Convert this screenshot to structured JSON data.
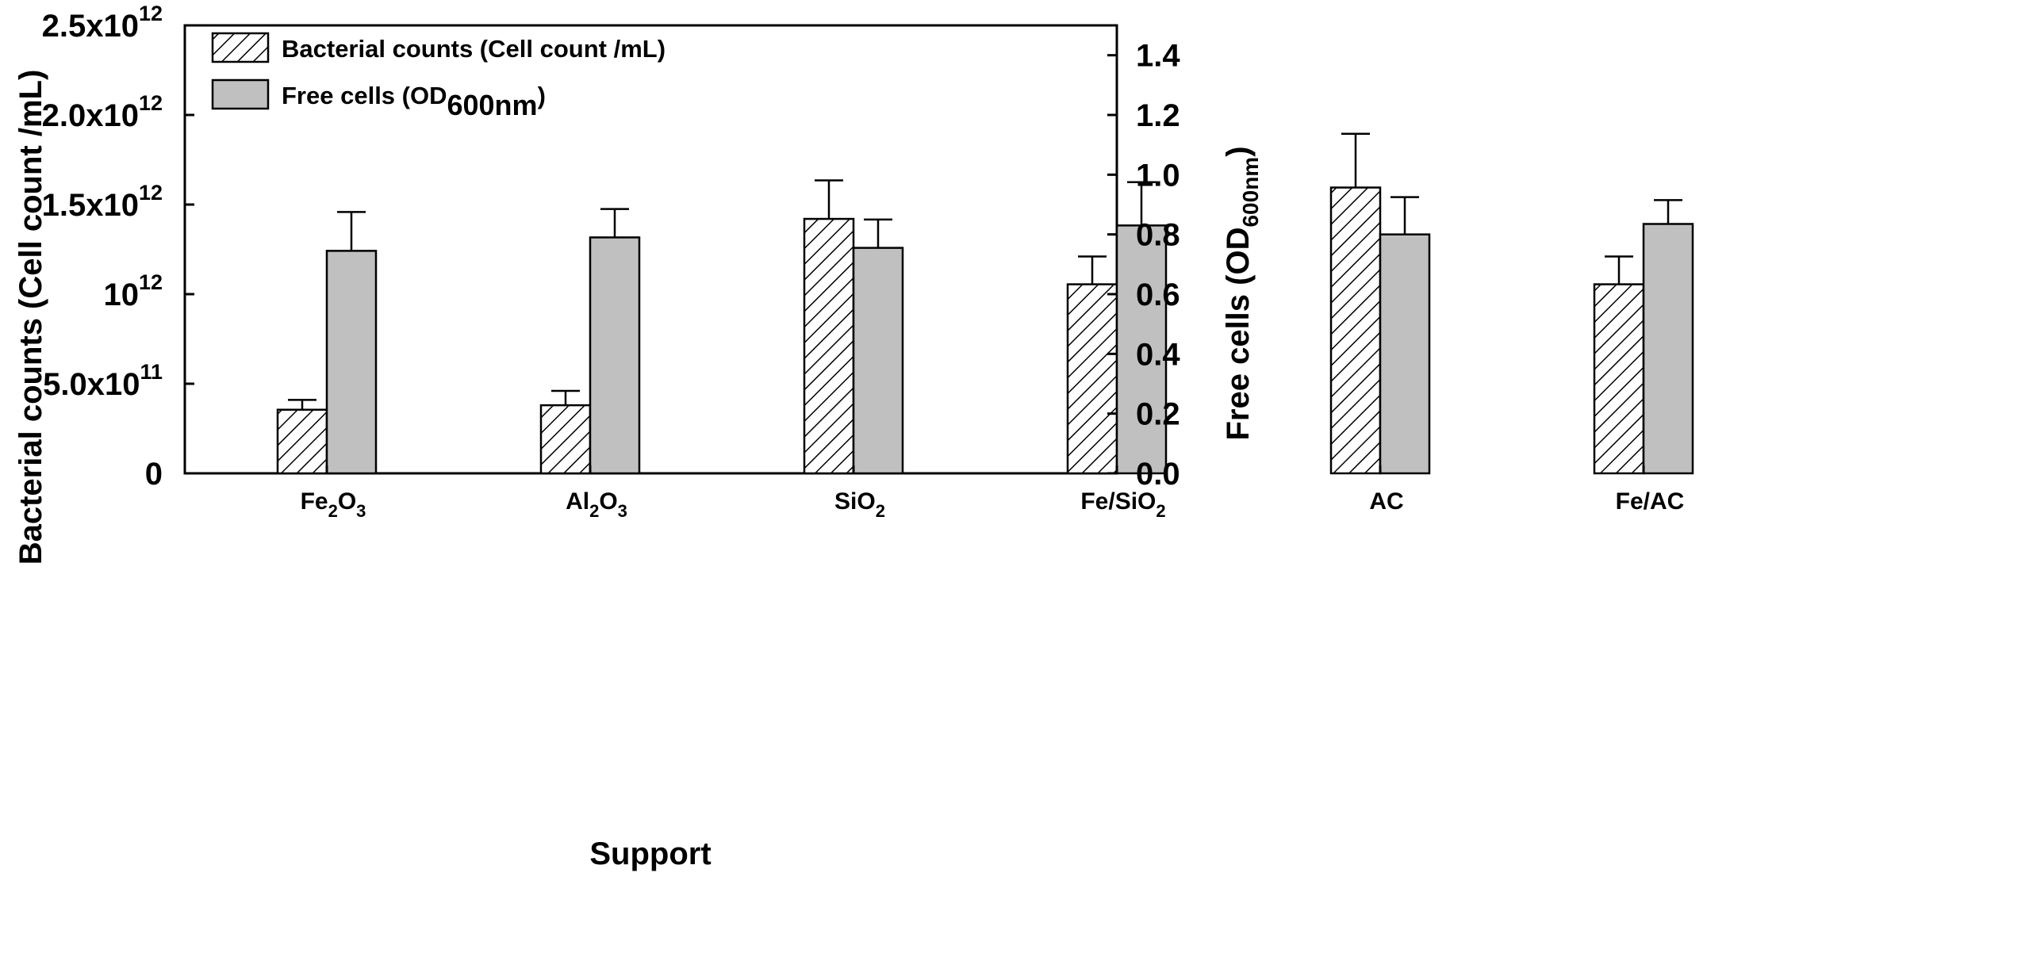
{
  "chart_data": {
    "type": "bar",
    "categories": [
      {
        "base": "Fe",
        "sub1": "2",
        "mid": "O",
        "sub2": "3",
        "rest": ""
      },
      {
        "base": "Al",
        "sub1": "2",
        "mid": "O",
        "sub2": "3",
        "rest": ""
      },
      {
        "base": "SiO",
        "sub1": "2",
        "mid": "",
        "sub2": "",
        "rest": ""
      },
      {
        "base": "Fe/SiO",
        "sub1": "2",
        "mid": "",
        "sub2": "",
        "rest": ""
      },
      {
        "base": "AC",
        "sub1": "",
        "mid": "",
        "sub2": "",
        "rest": ""
      },
      {
        "base": "Fe/AC",
        "sub1": "",
        "mid": "",
        "sub2": "",
        "rest": ""
      }
    ],
    "series": [
      {
        "name": "Bacterial counts (Cell count /mL)",
        "axis": "left",
        "pattern": "hatched",
        "values": [
          355000000000.0,
          380000000000.0,
          1420000000000.0,
          1055000000000.0,
          1595000000000.0,
          1055000000000.0
        ],
        "errors": [
          55000000000.0,
          80000000000.0,
          215000000000.0,
          155000000000.0,
          300000000000.0,
          155000000000.0
        ]
      },
      {
        "name": "Free cells (OD600nm)",
        "axis": "right",
        "pattern": "solid",
        "color": "#c0c0c0",
        "values": [
          0.745,
          0.79,
          0.755,
          0.83,
          0.8,
          0.835
        ],
        "errors": [
          0.13,
          0.095,
          0.095,
          0.145,
          0.125,
          0.08
        ]
      }
    ],
    "left_axis": {
      "ylim": [
        0,
        2500000000000.0
      ],
      "ticks": [
        {
          "value": 0,
          "mant": "0",
          "exp": ""
        },
        {
          "value": 500000000000.0,
          "mant": "5.0x10",
          "exp": "11"
        },
        {
          "value": 1000000000000.0,
          "mant": "10",
          "exp": "12"
        },
        {
          "value": 1500000000000.0,
          "mant": "1.5x10",
          "exp": "12"
        },
        {
          "value": 2000000000000.0,
          "mant": "2.0x10",
          "exp": "12"
        },
        {
          "value": 2500000000000.0,
          "mant": "2.5x10",
          "exp": "12"
        }
      ],
      "label": "Bacterial counts (Cell count /mL)"
    },
    "right_axis": {
      "ylim": [
        0,
        1.5
      ],
      "ticks": [
        "0.0",
        "0.2",
        "0.4",
        "0.6",
        "0.8",
        "1.0",
        "1.2",
        "1.4"
      ],
      "label_main": "Free cells (OD",
      "label_sub": "600nm",
      "label_end": ")"
    },
    "xlabel": "Support",
    "legend": {
      "placement": "top-left",
      "entries": [
        {
          "main": "Bacterial counts (Cell count /mL)",
          "sub": "",
          "end": ""
        },
        {
          "main": "Free cells (OD",
          "sub": "600nm",
          "end": ")"
        }
      ]
    }
  }
}
